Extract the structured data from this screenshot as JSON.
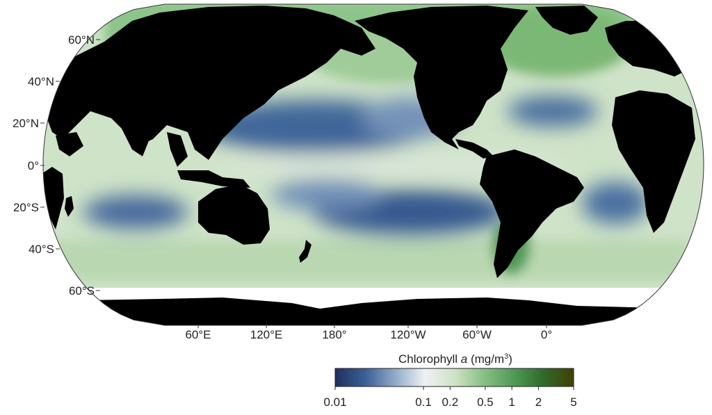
{
  "map": {
    "projection": "Robinson",
    "central_meridian": "150°W",
    "land_color": "#000000",
    "no_data_color": "#ffffff",
    "lat_labels": [
      "60°N",
      "40°N",
      "20°N",
      "0°",
      "20°S",
      "40°S",
      "60°S"
    ],
    "lon_labels": [
      "60°E",
      "120°E",
      "180°",
      "120°W",
      "60°W",
      "0°"
    ],
    "regions": [
      {
        "name": "north-pacific-gyre",
        "value_level": "low"
      },
      {
        "name": "south-pacific-gyre",
        "value_level": "low"
      },
      {
        "name": "north-atlantic-gyre",
        "value_level": "low"
      },
      {
        "name": "south-atlantic-gyre",
        "value_level": "low"
      },
      {
        "name": "south-indian-gyre",
        "value_level": "low"
      },
      {
        "name": "equatorial-band",
        "value_level": "moderate"
      },
      {
        "name": "southern-ocean",
        "value_level": "moderate"
      },
      {
        "name": "high-latitude-north",
        "value_level": "high"
      },
      {
        "name": "patagonian-shelf",
        "value_level": "high"
      }
    ]
  },
  "colorbar": {
    "title_prefix": "Chlorophyll ",
    "title_variable": "a",
    "title_units_prefix": " (mg/m",
    "title_units_sup": "3",
    "title_units_suffix": ")",
    "scale": "log",
    "min": 0.01,
    "max": 5,
    "ticks": [
      {
        "value": 0.01,
        "label": "0.01"
      },
      {
        "value": 0.1,
        "label": "0.1"
      },
      {
        "value": 0.2,
        "label": "0.2"
      },
      {
        "value": 0.5,
        "label": "0.5"
      },
      {
        "value": 1,
        "label": "1"
      },
      {
        "value": 2,
        "label": "2"
      },
      {
        "value": 5,
        "label": "5"
      }
    ],
    "colors": [
      "#1f2f5c",
      "#3a5f95",
      "#8fa9c8",
      "#eef1f3",
      "#cfe3c6",
      "#88bf84",
      "#4f9a55",
      "#2e6a2a",
      "#433f06"
    ]
  }
}
